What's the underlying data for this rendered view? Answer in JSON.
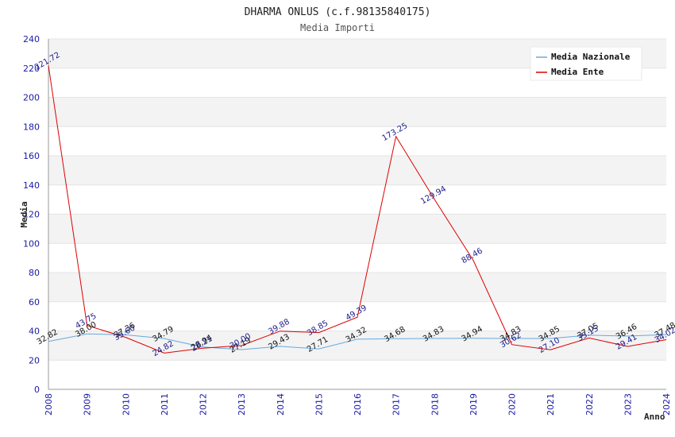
{
  "chart_data": {
    "type": "line",
    "title": "DHARMA ONLUS (c.f.98135840175)",
    "subtitle": "Media Importi",
    "xlabel": "Anno",
    "ylabel": "Media",
    "ylim": [
      0,
      240
    ],
    "yticks": [
      0,
      20,
      40,
      60,
      80,
      100,
      120,
      140,
      160,
      180,
      200,
      220,
      240
    ],
    "categories": [
      "2008",
      "2009",
      "2010",
      "2011",
      "2012",
      "2013",
      "2014",
      "2015",
      "2016",
      "2017",
      "2018",
      "2019",
      "2020",
      "2021",
      "2022",
      "2023",
      "2024"
    ],
    "legend_position": "top-right",
    "series": [
      {
        "name": "Media Nazionale",
        "color": "#66aadd",
        "values": [
          32.82,
          38.0,
          37.36,
          34.79,
          28.94,
          27.19,
          29.43,
          27.71,
          34.32,
          34.68,
          34.83,
          34.94,
          34.83,
          34.85,
          37.05,
          36.46,
          37.48
        ],
        "labels": [
          "32.82",
          "38.00",
          "37.36",
          "34.79",
          "28.94",
          "27.19",
          "29.43",
          "27.71",
          "34.32",
          "34.68",
          "34.83",
          "34.94",
          "34.83",
          "34.85",
          "37.05",
          "36.46",
          "37.48"
        ]
      },
      {
        "name": "Media Ente",
        "color": "#dd0000",
        "values": [
          221.72,
          43.75,
          35.6,
          24.82,
          28.21,
          30.0,
          39.88,
          38.85,
          49.39,
          173.25,
          129.94,
          88.46,
          30.62,
          27.1,
          35.15,
          29.41,
          34.02
        ],
        "labels": [
          "221.72",
          "43.75",
          "35.60",
          "24.82",
          "28.21",
          "30.00",
          "39.88",
          "38.85",
          "49.39",
          "173.25",
          "129.94",
          "88.46",
          "30.62",
          "27.10",
          "35.15",
          "29.41",
          "34.02"
        ]
      }
    ]
  }
}
